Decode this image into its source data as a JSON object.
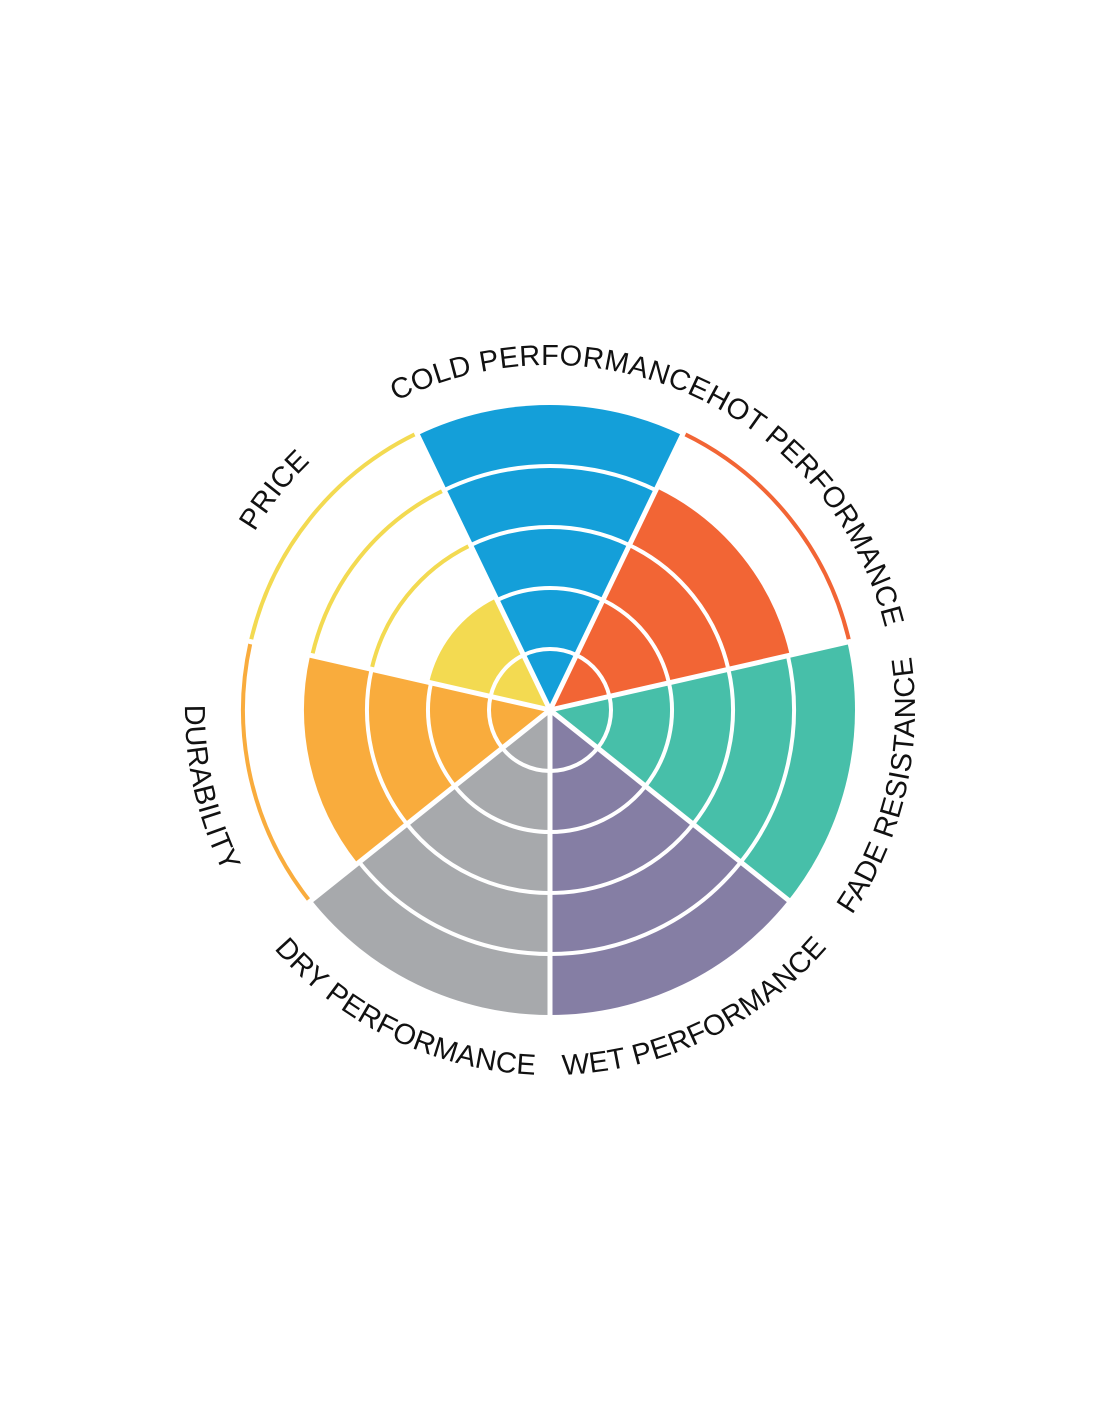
{
  "chart_data": {
    "type": "polar-area",
    "title": "",
    "rmax": 5,
    "rings": [
      1,
      2,
      3,
      4,
      5
    ],
    "categories": [
      {
        "name": "COLD PERFORMANCE",
        "value": 5,
        "color": "#149fd9"
      },
      {
        "name": "HOT PERFORMANCE",
        "value": 4,
        "color": "#f26535"
      },
      {
        "name": "FADE RESISTANCE",
        "value": 5,
        "color": "#47bfa9"
      },
      {
        "name": "WET PERFORMANCE",
        "value": 5,
        "color": "#857ea4"
      },
      {
        "name": "DRY PERFORMANCE",
        "value": 5,
        "color": "#a7a9ac"
      },
      {
        "name": "DURABILITY",
        "value": 4,
        "color": "#f9ac3d"
      },
      {
        "name": "PRICE",
        "value": 2,
        "color": "#f3da51"
      }
    ]
  }
}
